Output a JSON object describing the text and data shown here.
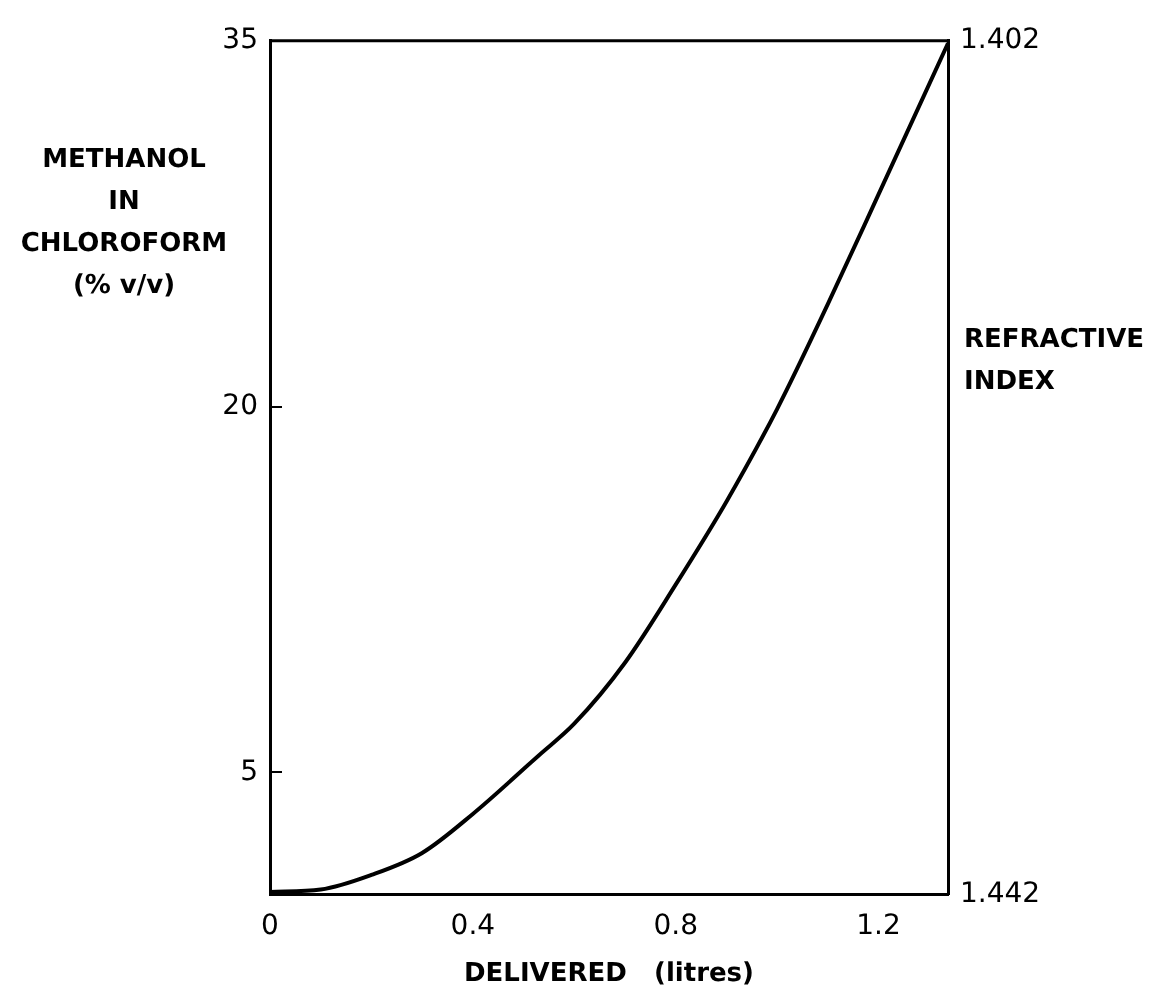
{
  "chart_data": {
    "type": "line",
    "xlabel": "DELIVERED   (litres)",
    "ylabel": "METHANOL\nIN\nCHLOROFORM\n(% v/v)",
    "y2label": "REFRACTIVE\nINDEX",
    "x": [
      0,
      0.1,
      0.2,
      0.3,
      0.4,
      0.53,
      0.6,
      0.7,
      0.8,
      0.9,
      1.0,
      1.1,
      1.2,
      1.337
    ],
    "series": [
      {
        "color": "#000000",
        "values": [
          0.1,
          0.2,
          0.8,
          1.7,
          3.3,
          5.7,
          7.0,
          9.5,
          12.7,
          16.1,
          19.9,
          24.2,
          28.7,
          34.9
        ]
      }
    ],
    "xlim": [
      0,
      1.337
    ],
    "xticks": [
      0,
      0.4,
      0.8,
      1.2
    ],
    "ylim": [
      0,
      35
    ],
    "yticks": [
      5,
      20,
      35
    ],
    "y2lim": [
      1.442,
      1.402
    ],
    "y2ticks": [
      1.442,
      1.402
    ],
    "grid": false,
    "legend": false,
    "marker": "none",
    "line_style": "solid"
  }
}
